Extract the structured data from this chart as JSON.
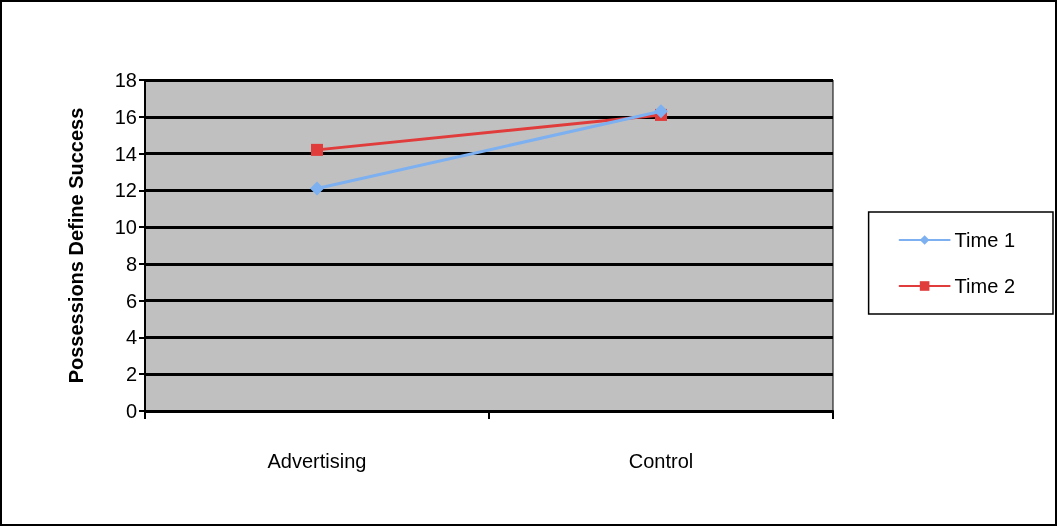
{
  "chart_data": {
    "type": "line",
    "ylabel": "Possessions Define Success",
    "categories": [
      "Advertising",
      "Control"
    ],
    "series": [
      {
        "name": "Time 1",
        "color": "#7cb0f0",
        "marker": "diamond",
        "values": [
          12.1,
          16.3
        ]
      },
      {
        "name": "Time 2",
        "color": "#e03c3c",
        "marker": "square",
        "values": [
          14.2,
          16.1
        ]
      }
    ],
    "ylim": [
      0,
      18
    ],
    "yticks": [
      0,
      2,
      4,
      6,
      8,
      10,
      12,
      14,
      16,
      18
    ],
    "grid": "y",
    "legend": "right"
  }
}
